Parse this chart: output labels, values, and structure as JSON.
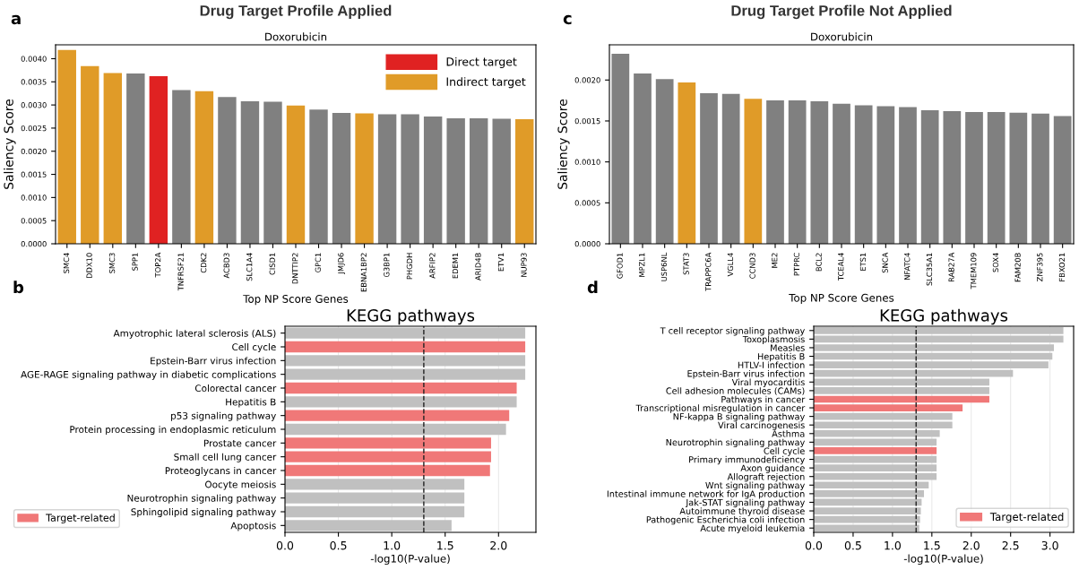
{
  "chart_data": [
    {
      "type": "bar",
      "title": "Drug Target Profile Applied",
      "subtitle": "Doxorubicin",
      "xlabel": "Top NP Score Genes",
      "ylabel": "Saliency Score",
      "annotations": [
        "a"
      ],
      "categories": [
        "SMC4",
        "DDX10",
        "SMC3",
        "SPP1",
        "TOP2A",
        "TNFRSF21",
        "CDK2",
        "ACBD3",
        "SLC1A4",
        "CISD1",
        "DNTTIP2",
        "GPC1",
        "JMJD6",
        "EBNA1BP2",
        "G3BP1",
        "PHGDH",
        "ARFIP2",
        "EDEM1",
        "ARID4B",
        "ETV1",
        "NUP93"
      ],
      "series": [
        {
          "color": "#808080",
          "values": [
            null,
            null,
            null,
            0.00368,
            null,
            0.00332,
            null,
            0.00317,
            0.00308,
            0.00307,
            null,
            0.0029,
            0.00283,
            null,
            0.0028,
            0.0028,
            0.00275,
            0.00271,
            0.00271,
            0.0027,
            null
          ]
        },
        {
          "name": "Direct target",
          "color": "#e02222",
          "values": [
            null,
            null,
            null,
            null,
            0.00362,
            null,
            null,
            null,
            null,
            null,
            null,
            null,
            null,
            null,
            null,
            null,
            null,
            null,
            null,
            null,
            null
          ]
        },
        {
          "name": "Indirect target",
          "color": "#e09b28",
          "values": [
            0.00419,
            0.00384,
            0.00369,
            null,
            null,
            null,
            0.0033,
            null,
            null,
            null,
            0.00299,
            null,
            null,
            0.00282,
            null,
            null,
            null,
            null,
            null,
            null,
            0.00269
          ]
        }
      ],
      "ylim": [
        0,
        0.0043
      ],
      "yticks": [
        {
          "value": 0,
          "label": "0.0000"
        },
        {
          "value": 0.0005,
          "label": "0.0005"
        },
        {
          "value": 0.001,
          "label": "0.0010"
        },
        {
          "value": 0.0015,
          "label": "0.0015"
        },
        {
          "value": 0.002,
          "label": "0.0020"
        },
        {
          "value": 0.0025,
          "label": "0.0025"
        },
        {
          "value": 0.003,
          "label": "0.0030"
        },
        {
          "value": 0.0035,
          "label": "0.0035"
        },
        {
          "value": 0.004,
          "label": "0.0040"
        }
      ],
      "grid": false,
      "legend": "top right"
    },
    {
      "type": "bar",
      "orientation": "horizontal",
      "title": "KEGG pathways",
      "xlabel": "-log10(P-value)",
      "annotations": [
        "b"
      ],
      "categories": [
        "Amyotrophic lateral sclerosis (ALS)",
        "Cell cycle",
        "Epstein-Barr virus infection",
        "AGE-RAGE signaling pathway in diabetic complications",
        "Colorectal cancer",
        "Hepatitis B",
        "p53 signaling pathway",
        "Protein processing in endoplasmic reticulum",
        "Prostate cancer",
        "Small cell lung cancer",
        "Proteoglycans in cancer",
        "Oocyte meiosis",
        "Neurotrophin signaling pathway",
        "Sphingolipid signaling pathway",
        "Apoptosis"
      ],
      "series": [
        {
          "color": "#c0c0c0",
          "values": [
            2.25,
            null,
            2.25,
            2.25,
            null,
            2.17,
            null,
            2.07,
            null,
            null,
            null,
            1.68,
            1.68,
            1.68,
            1.56
          ]
        },
        {
          "name": "Target-related",
          "color": "#f07878",
          "values": [
            null,
            2.25,
            null,
            null,
            2.17,
            null,
            2.1,
            null,
            1.93,
            1.93,
            1.92,
            null,
            null,
            null,
            null
          ]
        }
      ],
      "xlim": [
        0,
        2.35
      ],
      "xticks": [
        {
          "value": 0,
          "label": "0.0"
        },
        {
          "value": 0.5,
          "label": "0.5"
        },
        {
          "value": 1,
          "label": "1.0"
        },
        {
          "value": 1.5,
          "label": "1.5"
        },
        {
          "value": 2,
          "label": "2.0"
        }
      ],
      "ref_lines": [
        {
          "axis": "x",
          "value": 1.3,
          "color": "#222222",
          "line_style": "dashed"
        }
      ],
      "grid": "x",
      "legend": "bottom left"
    },
    {
      "type": "bar",
      "title": "Drug Target Profile Not Applied",
      "subtitle": "Doxorubicin",
      "xlabel": "Top NP Score Genes",
      "ylabel": "Saliency Score",
      "annotations": [
        "c"
      ],
      "categories": [
        "GFOD1",
        "MPZL1",
        "USP6NL",
        "STAT3",
        "TRAPPC6A",
        "VGLL4",
        "CCND3",
        "ME2",
        "PTPRC",
        "BCL2",
        "TCEAL4",
        "ETS1",
        "SNCA",
        "NFATC4",
        "SLC35A1",
        "RAB27A",
        "TMEM109",
        "SOX4",
        "FAM20B",
        "ZNF395",
        "FBXO21"
      ],
      "values": [
        0.00232,
        0.00208,
        0.00201,
        0.00197,
        0.00184,
        0.00183,
        0.00177,
        0.00175,
        0.00175,
        0.00174,
        0.00171,
        0.00169,
        0.00168,
        0.00167,
        0.00163,
        0.00162,
        0.00161,
        0.00161,
        0.0016,
        0.00159,
        0.00156
      ],
      "colors": [
        "#808080",
        "#808080",
        "#808080",
        "#e09b28",
        "#808080",
        "#808080",
        "#e09b28",
        "#808080",
        "#808080",
        "#808080",
        "#808080",
        "#808080",
        "#808080",
        "#808080",
        "#808080",
        "#808080",
        "#808080",
        "#808080",
        "#808080",
        "#808080",
        "#808080"
      ],
      "ylim": [
        0,
        0.00243
      ],
      "yticks": [
        {
          "value": 0,
          "label": "0.0000"
        },
        {
          "value": 0.0005,
          "label": "0.0005"
        },
        {
          "value": 0.001,
          "label": "0.0010"
        },
        {
          "value": 0.0015,
          "label": "0.0015"
        },
        {
          "value": 0.002,
          "label": "0.0020"
        }
      ],
      "grid": false
    },
    {
      "type": "bar",
      "orientation": "horizontal",
      "title": "KEGG pathways",
      "xlabel": "-log10(P-value)",
      "annotations": [
        "d"
      ],
      "categories": [
        "T cell receptor signaling pathway",
        "Toxoplasmosis",
        "Measles",
        "Hepatitis B",
        "HTLV-I infection",
        "Epstein-Barr virus infection",
        "Viral myocarditis",
        "Cell adhesion molecules (CAMs)",
        "Pathways in cancer",
        "Transcriptional misregulation in cancer",
        "NF-kappa B signaling pathway",
        "Viral carcinogenesis",
        "Asthma",
        "Neurotrophin signaling pathway",
        "Cell cycle",
        "Primary immunodeficiency",
        "Axon guidance",
        "Allograft rejection",
        "Wnt signaling pathway",
        "Intestinal immune network for IgA production",
        "Jak-STAT signaling pathway",
        "Autoimmune thyroid disease",
        "Pathogenic Escherichia coli infection",
        "Acute myeloid leukemia"
      ],
      "series": [
        {
          "color": "#c0c0c0",
          "values": [
            3.17,
            3.17,
            3.05,
            3.03,
            2.98,
            2.53,
            2.23,
            2.23,
            null,
            null,
            1.76,
            1.76,
            1.6,
            1.56,
            null,
            1.56,
            1.56,
            1.56,
            1.46,
            1.4,
            1.37,
            1.36,
            1.35,
            1.34
          ]
        },
        {
          "name": "Target-related",
          "color": "#f07878",
          "values": [
            null,
            null,
            null,
            null,
            null,
            null,
            null,
            null,
            2.23,
            1.89,
            null,
            null,
            null,
            null,
            1.56,
            null,
            null,
            null,
            null,
            null,
            null,
            null,
            null,
            null
          ]
        }
      ],
      "xlim": [
        0,
        3.3
      ],
      "xticks": [
        {
          "value": 0,
          "label": "0.0"
        },
        {
          "value": 0.5,
          "label": "0.5"
        },
        {
          "value": 1,
          "label": "1.0"
        },
        {
          "value": 1.5,
          "label": "1.5"
        },
        {
          "value": 2,
          "label": "2.0"
        },
        {
          "value": 2.5,
          "label": "2.5"
        },
        {
          "value": 3,
          "label": "3.0"
        }
      ],
      "ref_lines": [
        {
          "axis": "x",
          "value": 1.3,
          "color": "#222222",
          "line_style": "dashed"
        }
      ],
      "grid": "x",
      "legend": "bottom right"
    }
  ]
}
